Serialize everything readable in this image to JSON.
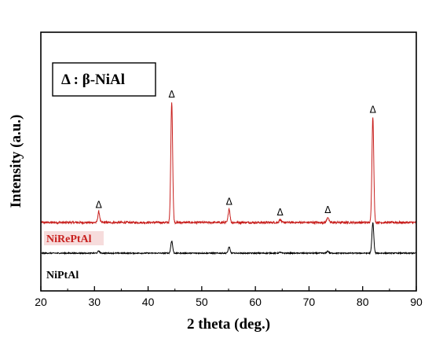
{
  "chart_data": {
    "type": "line",
    "title": "",
    "xlabel": "2 theta (deg.)",
    "ylabel": "Intensity (a.u.)",
    "xlim": [
      20,
      90
    ],
    "xticks": [
      "20",
      "30",
      "40",
      "50",
      "60",
      "70",
      "80",
      "90"
    ],
    "grid": false,
    "legend": {
      "text": "Δ : β-NiAl",
      "placement": "top-left"
    },
    "peak_marker": "Δ",
    "peaks": [
      30.8,
      44.4,
      55.1,
      64.6,
      73.5,
      81.9
    ],
    "series": [
      {
        "name": "NiRePtAl",
        "color": "#c8201e",
        "baseline": 1.0,
        "peak_heights": [
          0.35,
          3.95,
          0.45,
          0.1,
          0.18,
          3.45
        ]
      },
      {
        "name": "NiPtAl",
        "color": "#000000",
        "baseline": 0.0,
        "peak_heights": [
          0.07,
          0.4,
          0.2,
          0.03,
          0.07,
          1.0
        ]
      }
    ]
  },
  "colors": {
    "frame": "#000000",
    "label_highlight": "#f6dcdc"
  }
}
